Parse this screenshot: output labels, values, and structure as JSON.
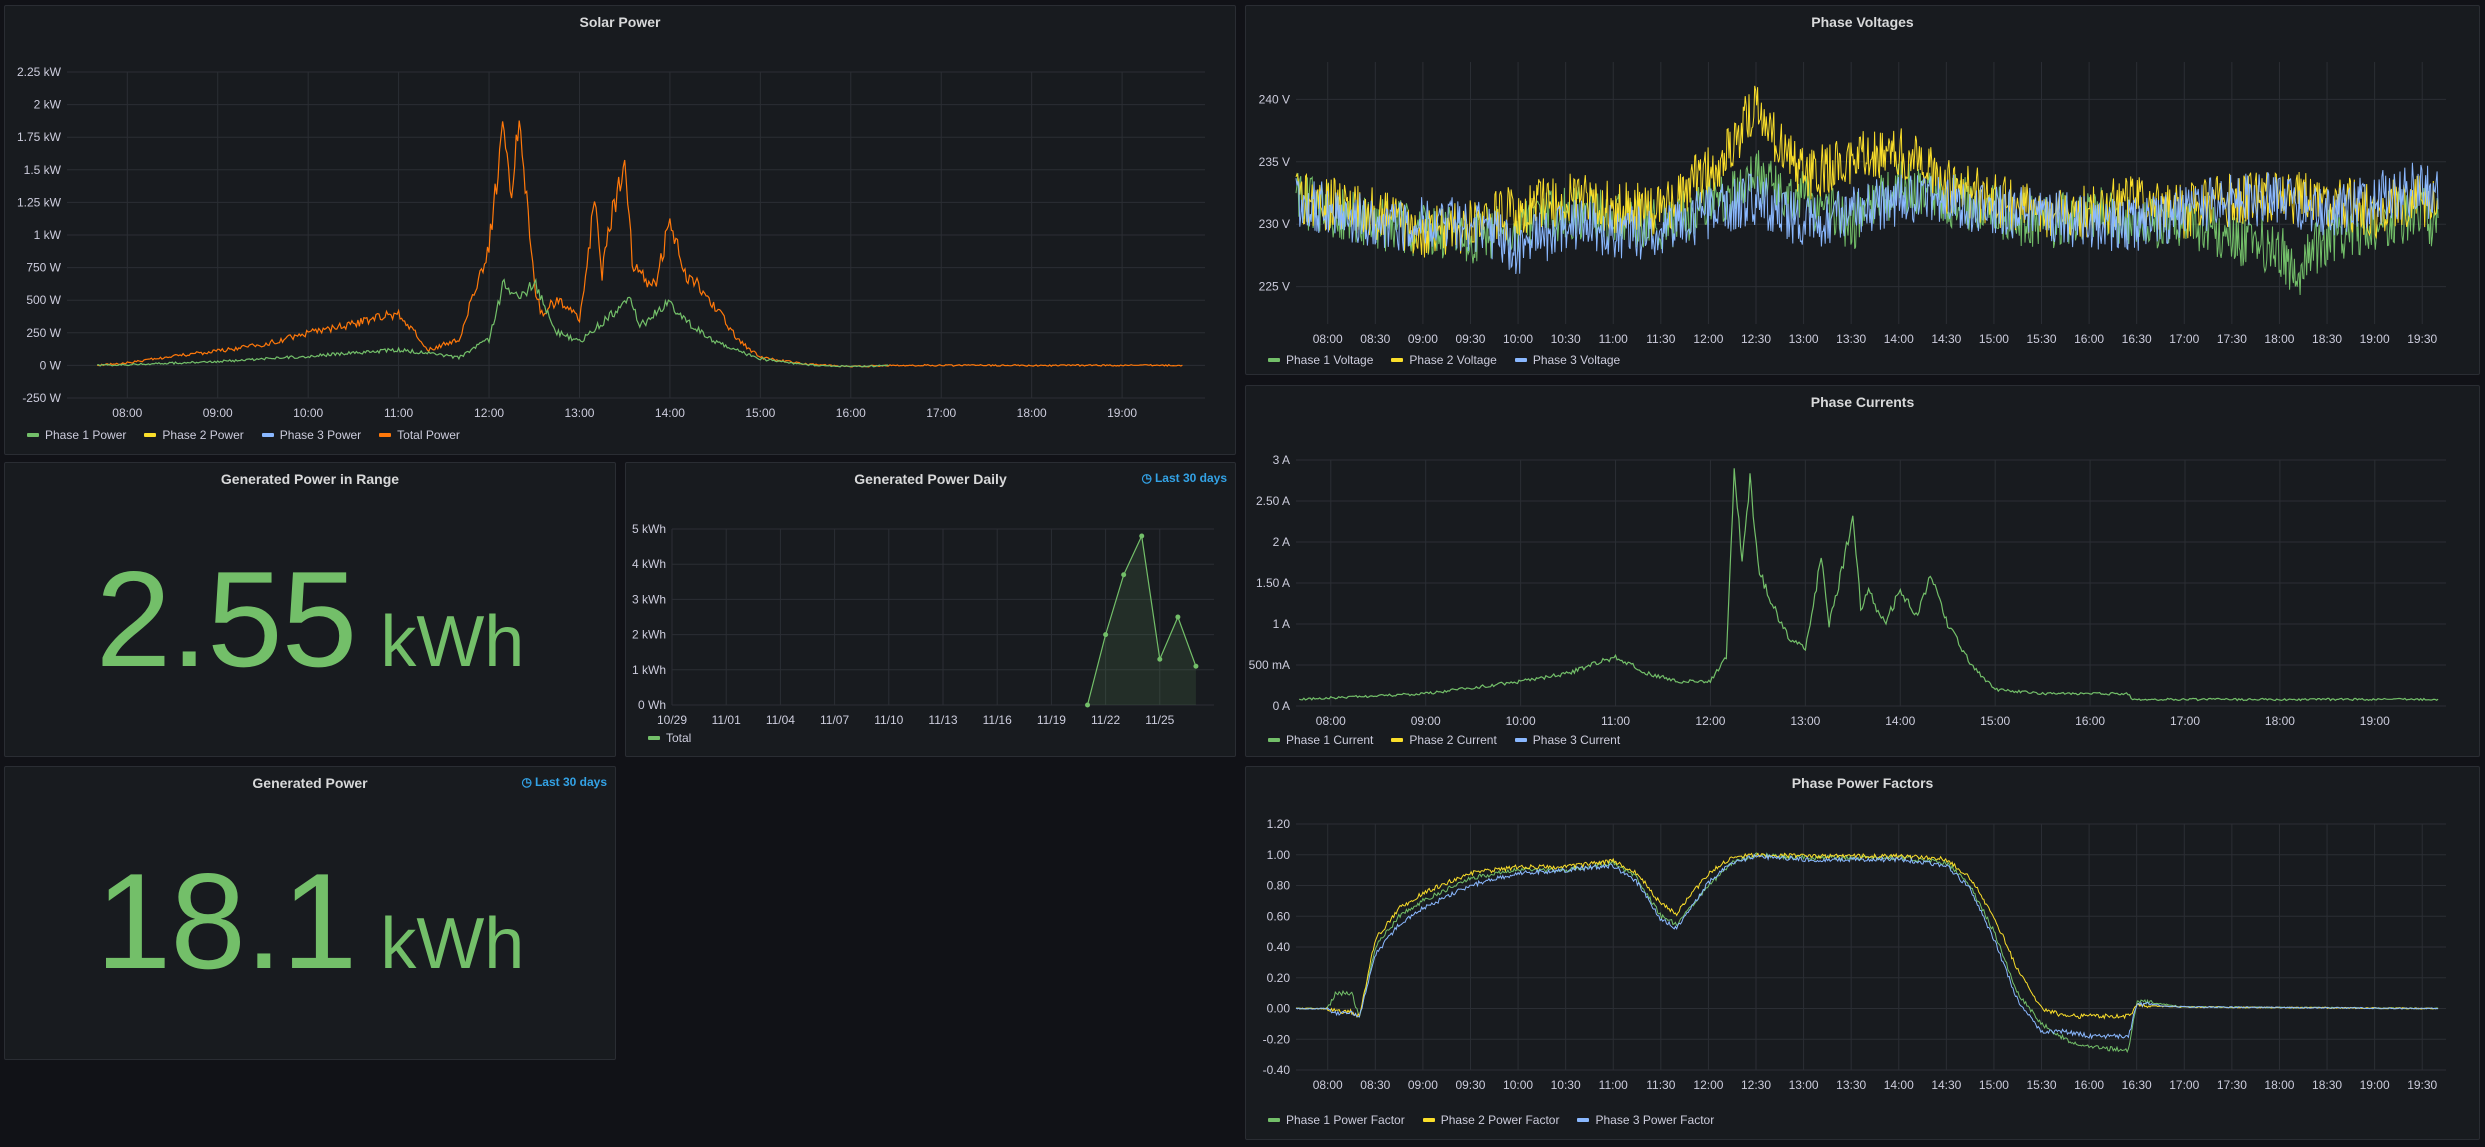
{
  "colors": {
    "green": "#73bf69",
    "yellow": "#fade2a",
    "blue": "#8ab8ff",
    "orange": "#ff780a",
    "accent": "#33a2e5"
  },
  "panels": {
    "solar_power": {
      "title": "Solar Power",
      "legend": [
        "Phase 1 Power",
        "Phase 2 Power",
        "Phase 3 Power",
        "Total Power"
      ]
    },
    "phase_voltages": {
      "title": "Phase Voltages",
      "legend": [
        "Phase 1 Voltage",
        "Phase 2 Voltage",
        "Phase 3 Voltage"
      ]
    },
    "phase_currents": {
      "title": "Phase Currents",
      "legend": [
        "Phase 1 Current",
        "Phase 2 Current",
        "Phase 3 Current"
      ]
    },
    "phase_power_factors": {
      "title": "Phase Power Factors",
      "legend": [
        "Phase 1 Power Factor",
        "Phase 2 Power Factor",
        "Phase 3 Power Factor"
      ]
    },
    "generated_power_in_range": {
      "title": "Generated Power in Range",
      "value": "2.55",
      "unit": "kWh"
    },
    "generated_power_daily": {
      "title": "Generated Power Daily",
      "time_badge": "Last 30 days",
      "legend": [
        "Total"
      ]
    },
    "generated_power": {
      "title": "Generated Power",
      "time_badge": "Last 30 days",
      "value": "18.1",
      "unit": "kWh"
    }
  },
  "chart_data": [
    {
      "id": "solar_power",
      "type": "line",
      "title": "Solar Power",
      "x_ticks": [
        "08:00",
        "09:00",
        "10:00",
        "11:00",
        "12:00",
        "13:00",
        "14:00",
        "15:00",
        "16:00",
        "17:00",
        "18:00",
        "19:00"
      ],
      "y_ticks": [
        "2.25 kW",
        "2 kW",
        "1.75 kW",
        "1.5 kW",
        "1.25 kW",
        "1 kW",
        "750 W",
        "500 W",
        "250 W",
        "0 W",
        "-250 W"
      ],
      "ylim": [
        -250,
        2250
      ],
      "series": [
        {
          "name": "Total Power",
          "color": "#ff780a",
          "x": [
            "07:40",
            "08:00",
            "08:30",
            "09:00",
            "09:30",
            "10:00",
            "10:30",
            "11:00",
            "11:20",
            "11:40",
            "12:00",
            "12:10",
            "12:15",
            "12:20",
            "12:25",
            "12:30",
            "12:35",
            "12:45",
            "13:00",
            "13:10",
            "13:15",
            "13:20",
            "13:30",
            "13:35",
            "13:40",
            "13:50",
            "14:00",
            "14:10",
            "14:20",
            "14:30",
            "14:45",
            "15:00",
            "15:30",
            "16:00",
            "16:25",
            "19:40"
          ],
          "values": [
            0,
            20,
            70,
            110,
            160,
            250,
            320,
            400,
            120,
            200,
            900,
            1900,
            1200,
            1950,
            1300,
            600,
            400,
            500,
            350,
            1250,
            700,
            1100,
            1550,
            800,
            700,
            600,
            1100,
            700,
            600,
            450,
            200,
            60,
            10,
            -10,
            0,
            0
          ]
        },
        {
          "name": "Phase 1 Power",
          "color": "#73bf69",
          "x": [
            "07:40",
            "08:00",
            "09:00",
            "10:00",
            "11:00",
            "11:40",
            "12:00",
            "12:10",
            "12:20",
            "12:30",
            "12:45",
            "13:00",
            "13:20",
            "13:35",
            "13:40",
            "14:00",
            "14:15",
            "14:30",
            "15:00",
            "15:30",
            "16:00",
            "16:25"
          ],
          "values": [
            0,
            5,
            30,
            70,
            120,
            60,
            200,
            650,
            500,
            650,
            250,
            180,
            380,
            500,
            300,
            480,
            300,
            180,
            50,
            5,
            -10,
            0
          ]
        },
        {
          "name": "Phase 2 Power",
          "color": "#fade2a",
          "x": [],
          "values": []
        },
        {
          "name": "Phase 3 Power",
          "color": "#8ab8ff",
          "x": [],
          "values": []
        }
      ]
    },
    {
      "id": "phase_voltages",
      "type": "line",
      "title": "Phase Voltages",
      "x_ticks": [
        "08:00",
        "08:30",
        "09:00",
        "09:30",
        "10:00",
        "10:30",
        "11:00",
        "11:30",
        "12:00",
        "12:30",
        "13:00",
        "13:30",
        "14:00",
        "14:30",
        "15:00",
        "15:30",
        "16:00",
        "16:30",
        "17:00",
        "17:30",
        "18:00",
        "18:30",
        "19:00",
        "19:30"
      ],
      "y_ticks": [
        "240 V",
        "235 V",
        "230 V",
        "225 V"
      ],
      "ylim": [
        222,
        243
      ],
      "series": [
        {
          "name": "Phase 1 Voltage",
          "color": "#73bf69",
          "x": [
            "07:40",
            "08:30",
            "09:30",
            "10:30",
            "11:30",
            "12:15",
            "12:30",
            "13:00",
            "13:30",
            "14:00",
            "14:30",
            "15:00",
            "15:30",
            "16:00",
            "16:30",
            "17:00",
            "17:30",
            "18:00",
            "18:10",
            "18:30",
            "19:00",
            "19:30",
            "19:40"
          ],
          "values": [
            232,
            230,
            229,
            231,
            230,
            232,
            234,
            232,
            230,
            233,
            232,
            231,
            230,
            231,
            230,
            230,
            229,
            228,
            226,
            229,
            230,
            231,
            230
          ]
        },
        {
          "name": "Phase 2 Voltage",
          "color": "#fade2a",
          "x": [
            "07:40",
            "08:30",
            "09:00",
            "09:30",
            "10:30",
            "11:30",
            "12:15",
            "12:30",
            "12:45",
            "13:00",
            "13:30",
            "14:00",
            "14:30",
            "15:00",
            "15:30",
            "16:00",
            "16:30",
            "17:00",
            "17:30",
            "18:00",
            "18:30",
            "19:00",
            "19:30",
            "19:40"
          ],
          "values": [
            232,
            231,
            229,
            230,
            232,
            231,
            236,
            240,
            236,
            234,
            235,
            236,
            233,
            232,
            231,
            231,
            232,
            231,
            232,
            232,
            232,
            231,
            232,
            231
          ]
        },
        {
          "name": "Phase 3 Voltage",
          "color": "#8ab8ff",
          "x": [
            "07:40",
            "08:30",
            "09:30",
            "10:00",
            "10:30",
            "11:30",
            "12:00",
            "12:30",
            "13:00",
            "13:30",
            "14:00",
            "14:30",
            "15:00",
            "15:30",
            "16:00",
            "16:30",
            "17:00",
            "17:30",
            "18:00",
            "18:30",
            "19:00",
            "19:30",
            "19:40"
          ],
          "values": [
            232,
            230,
            230,
            228,
            230,
            229,
            231,
            232,
            230,
            231,
            232,
            232,
            231,
            231,
            230,
            230,
            231,
            232,
            232,
            231,
            232,
            233,
            232
          ]
        }
      ]
    },
    {
      "id": "phase_currents",
      "type": "line",
      "title": "Phase Currents",
      "x_ticks": [
        "08:00",
        "09:00",
        "10:00",
        "11:00",
        "12:00",
        "13:00",
        "14:00",
        "15:00",
        "16:00",
        "17:00",
        "18:00",
        "19:00"
      ],
      "y_ticks": [
        "3 A",
        "2.50 A",
        "2 A",
        "1.50 A",
        "1 A",
        "500 mA",
        "0 A"
      ],
      "ylim": [
        0,
        3
      ],
      "series": [
        {
          "name": "Phase 1 Current",
          "color": "#73bf69",
          "x": [
            "07:40",
            "08:00",
            "09:00",
            "10:00",
            "10:30",
            "11:00",
            "11:20",
            "11:40",
            "12:00",
            "12:10",
            "12:15",
            "12:20",
            "12:25",
            "12:30",
            "12:40",
            "12:50",
            "13:00",
            "13:10",
            "13:15",
            "13:20",
            "13:30",
            "13:35",
            "13:40",
            "13:50",
            "14:00",
            "14:10",
            "14:20",
            "14:30",
            "14:45",
            "15:00",
            "15:30",
            "16:00",
            "16:25",
            "16:26",
            "19:40"
          ],
          "values": [
            0.08,
            0.1,
            0.15,
            0.3,
            0.4,
            0.6,
            0.4,
            0.3,
            0.3,
            0.6,
            2.8,
            1.8,
            2.8,
            1.7,
            1.2,
            0.8,
            0.7,
            1.8,
            1.0,
            1.4,
            2.3,
            1.2,
            1.4,
            1.0,
            1.4,
            1.1,
            1.6,
            1.0,
            0.5,
            0.2,
            0.15,
            0.15,
            0.15,
            0.08,
            0.08
          ]
        },
        {
          "name": "Phase 2 Current",
          "color": "#fade2a",
          "x": [],
          "values": []
        },
        {
          "name": "Phase 3 Current",
          "color": "#8ab8ff",
          "x": [],
          "values": []
        }
      ]
    },
    {
      "id": "phase_power_factors",
      "type": "line",
      "title": "Phase Power Factors",
      "x_ticks": [
        "08:00",
        "08:30",
        "09:00",
        "09:30",
        "10:00",
        "10:30",
        "11:00",
        "11:30",
        "12:00",
        "12:30",
        "13:00",
        "13:30",
        "14:00",
        "14:30",
        "15:00",
        "15:30",
        "16:00",
        "16:30",
        "17:00",
        "17:30",
        "18:00",
        "18:30",
        "19:00",
        "19:30"
      ],
      "y_ticks": [
        "1.20",
        "1.00",
        "0.80",
        "0.60",
        "0.40",
        "0.20",
        "0.00",
        "-0.20",
        "-0.40"
      ],
      "ylim": [
        -0.4,
        1.2
      ],
      "series": [
        {
          "name": "Phase 1 Power Factor",
          "color": "#73bf69",
          "x": [
            "07:40",
            "08:00",
            "08:05",
            "08:15",
            "08:20",
            "08:30",
            "08:45",
            "09:00",
            "09:30",
            "10:00",
            "10:30",
            "11:00",
            "11:15",
            "11:30",
            "11:40",
            "12:00",
            "12:15",
            "12:30",
            "13:00",
            "13:30",
            "14:00",
            "14:30",
            "14:45",
            "15:00",
            "15:15",
            "15:30",
            "15:45",
            "16:00",
            "16:25",
            "16:30",
            "17:00",
            "19:40"
          ],
          "values": [
            0,
            0,
            0.1,
            0.1,
            -0.05,
            0.4,
            0.6,
            0.7,
            0.85,
            0.9,
            0.9,
            0.95,
            0.85,
            0.6,
            0.55,
            0.8,
            0.95,
            1.0,
            0.98,
            0.98,
            0.98,
            0.95,
            0.8,
            0.5,
            0.1,
            -0.1,
            -0.2,
            -0.25,
            -0.27,
            0.05,
            0.01,
            0
          ]
        },
        {
          "name": "Phase 2 Power Factor",
          "color": "#fade2a",
          "x": [
            "07:40",
            "08:00",
            "08:05",
            "08:15",
            "08:20",
            "08:30",
            "08:45",
            "09:00",
            "09:30",
            "10:00",
            "10:30",
            "11:00",
            "11:15",
            "11:30",
            "11:40",
            "12:00",
            "12:15",
            "12:30",
            "13:00",
            "13:30",
            "14:00",
            "14:30",
            "14:45",
            "15:00",
            "15:15",
            "15:30",
            "15:45",
            "16:00",
            "16:25",
            "16:30",
            "17:00",
            "19:40"
          ],
          "values": [
            0,
            0,
            -0.02,
            -0.02,
            -0.05,
            0.45,
            0.65,
            0.75,
            0.88,
            0.92,
            0.92,
            0.96,
            0.88,
            0.68,
            0.62,
            0.88,
            0.98,
            1.0,
            0.99,
            0.99,
            0.99,
            0.97,
            0.85,
            0.6,
            0.25,
            0.0,
            -0.05,
            -0.05,
            -0.05,
            0.02,
            0.01,
            0
          ]
        },
        {
          "name": "Phase 3 Power Factor",
          "color": "#8ab8ff",
          "x": [
            "07:40",
            "08:00",
            "08:05",
            "08:15",
            "08:20",
            "08:30",
            "08:45",
            "09:00",
            "09:30",
            "10:00",
            "10:30",
            "11:00",
            "11:15",
            "11:30",
            "11:40",
            "12:00",
            "12:15",
            "12:30",
            "13:00",
            "13:30",
            "14:00",
            "14:30",
            "14:45",
            "15:00",
            "15:15",
            "15:30",
            "15:45",
            "16:00",
            "16:25",
            "16:30",
            "17:00",
            "19:40"
          ],
          "values": [
            0,
            0,
            -0.03,
            -0.03,
            -0.05,
            0.35,
            0.55,
            0.65,
            0.8,
            0.88,
            0.9,
            0.93,
            0.82,
            0.58,
            0.52,
            0.82,
            0.95,
            0.99,
            0.97,
            0.97,
            0.97,
            0.93,
            0.78,
            0.45,
            0.05,
            -0.15,
            -0.15,
            -0.18,
            -0.18,
            0.03,
            0.01,
            0
          ]
        }
      ]
    },
    {
      "id": "generated_power_daily",
      "type": "area",
      "title": "Generated Power Daily",
      "x_ticks": [
        "10/29",
        "11/01",
        "11/04",
        "11/07",
        "11/10",
        "11/13",
        "11/16",
        "11/19",
        "11/22",
        "11/25"
      ],
      "y_ticks": [
        "5 kWh",
        "4 kWh",
        "3 kWh",
        "2 kWh",
        "1 kWh",
        "0 Wh"
      ],
      "ylim": [
        0,
        5
      ],
      "series": [
        {
          "name": "Total",
          "color": "#73bf69",
          "x": [
            "11/21",
            "11/22",
            "11/23",
            "11/24",
            "11/25",
            "11/26",
            "11/27"
          ],
          "values": [
            0,
            2.0,
            3.7,
            4.8,
            1.3,
            2.5,
            1.1
          ]
        }
      ]
    }
  ]
}
